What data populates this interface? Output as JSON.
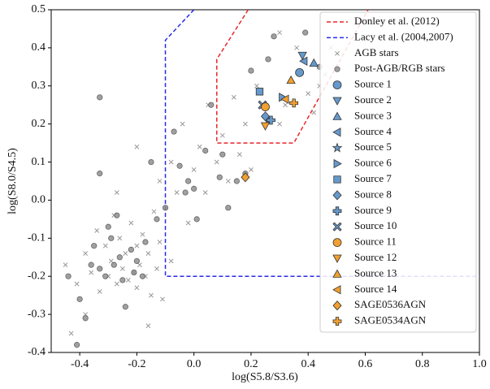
{
  "chart_data": {
    "type": "scatter",
    "x_label": "log(S5.8/S3.6)",
    "y_label": "log(S8.0/S4.5)",
    "xlim": [
      -0.5,
      1.0
    ],
    "ylim": [
      -0.4,
      0.5
    ],
    "xticks": [
      -0.4,
      -0.2,
      {
        "value": 0,
        "label": "0.0"
      },
      0.2,
      0.4,
      0.6,
      0.8,
      {
        "value": 1,
        "label": "1.0"
      }
    ],
    "yticks": [
      -0.4,
      -0.3,
      -0.2,
      -0.1,
      {
        "value": 0,
        "label": "0.0"
      },
      0.1,
      0.2,
      0.3,
      0.4,
      0.5
    ],
    "legend": "upper right",
    "lines": [
      {
        "name": "Donley et al. (2012)",
        "color": "#e8262a",
        "style": "dashed",
        "x": [
          0.19,
          0.08,
          0.08,
          0.35,
          0.61
        ],
        "y": [
          0.5,
          0.37,
          0.15,
          0.15,
          0.5
        ]
      },
      {
        "name": "Lacy et al. (2004,2007)",
        "color": "#2a2ae8",
        "style": "dashed",
        "x": [
          0,
          -0.1,
          -0.1,
          1.0
        ],
        "y": [
          0.5,
          0.42,
          -0.2,
          -0.2
        ]
      }
    ],
    "series": [
      {
        "name": "AGB stars",
        "color": "#999999",
        "marker": "x",
        "x": [
          -0.45,
          -0.43,
          -0.41,
          -0.38,
          -0.36,
          -0.34,
          -0.33,
          -0.31,
          -0.3,
          -0.29,
          -0.28,
          -0.27,
          -0.26,
          -0.25,
          -0.24,
          -0.23,
          -0.22,
          -0.21,
          -0.2,
          -0.2,
          -0.19,
          -0.18,
          -0.17,
          -0.16,
          -0.15,
          -0.14,
          -0.13,
          -0.12,
          -0.11,
          -0.2,
          -0.16,
          -0.27,
          -0.12,
          -0.08,
          -0.06,
          -0.04,
          -0.02,
          0,
          0.02,
          0.04,
          0.05,
          0.08,
          0.1,
          0.12,
          0.14,
          0.16,
          0.18,
          0.2,
          0.22,
          0.3,
          0.32,
          0.4,
          0.42,
          0.44,
          0.46,
          0.48,
          0.36,
          0.3,
          -0.08,
          -0.38
        ],
        "y": [
          -0.17,
          -0.35,
          -0.22,
          -0.14,
          -0.19,
          -0.08,
          -0.24,
          -0.12,
          -0.2,
          -0.16,
          -0.04,
          -0.22,
          -0.1,
          -0.18,
          -0.14,
          -0.21,
          -0.06,
          -0.19,
          -0.12,
          -0.23,
          -0.17,
          -0.09,
          -0.2,
          -0.14,
          -0.25,
          -0.03,
          -0.18,
          -0.11,
          -0.26,
          0.14,
          -0.33,
          0.02,
          0.05,
          0.1,
          0.02,
          0.2,
          -0.06,
          0.08,
          0.14,
          0.02,
          0.25,
          0.1,
          0.17,
          0.05,
          0.27,
          0.12,
          0.2,
          0.08,
          0.3,
          0.2,
          0.25,
          0.28,
          0.23,
          0.3,
          0.33,
          0.4,
          0.4,
          0.44,
          -0.16,
          -0.3
        ]
      },
      {
        "name": "Post-AGB/RGB stars",
        "color": "#888888",
        "marker": "o",
        "x": [
          -0.44,
          -0.4,
          -0.38,
          -0.36,
          -0.35,
          -0.33,
          -0.31,
          -0.3,
          -0.28,
          -0.26,
          -0.25,
          -0.24,
          -0.22,
          -0.21,
          -0.2,
          -0.18,
          -0.17,
          -0.33,
          -0.27,
          -0.15,
          -0.13,
          -0.1,
          -0.07,
          -0.05,
          -0.03,
          -0.02,
          0,
          0.01,
          0.04,
          0.06,
          0.09,
          0.1,
          0.12,
          0.15,
          0.18,
          0.2,
          0.26,
          0.28,
          0.39,
          -0.33,
          -0.41,
          0.44,
          -0.29
        ],
        "y": [
          -0.2,
          -0.26,
          -0.31,
          -0.17,
          -0.12,
          -0.18,
          -0.2,
          -0.07,
          -0.17,
          -0.15,
          -0.21,
          -0.28,
          -0.13,
          -0.19,
          -0.16,
          -0.2,
          -0.11,
          0.07,
          -0.04,
          0.1,
          -0.05,
          -0.02,
          0.18,
          0.09,
          0.02,
          0.05,
          0.03,
          -0.05,
          0.13,
          0.25,
          0.06,
          0.12,
          -0.02,
          0.05,
          0.07,
          0.34,
          0.37,
          0.43,
          0.44,
          0.27,
          -0.38,
          0.35,
          -0.1
        ]
      },
      {
        "name": "Source 1",
        "color": "#6699cc",
        "marker": "o",
        "x": [
          0.37
        ],
        "y": [
          0.335
        ]
      },
      {
        "name": "Source 2",
        "color": "#6699cc",
        "marker": "v",
        "x": [
          0.38
        ],
        "y": [
          0.38
        ]
      },
      {
        "name": "Source 3",
        "color": "#6699cc",
        "marker": "^",
        "x": [
          0.42
        ],
        "y": [
          0.36
        ]
      },
      {
        "name": "Source 4",
        "color": "#6699cc",
        "marker": "<",
        "x": [
          0.385
        ],
        "y": [
          0.365
        ]
      },
      {
        "name": "Source 5",
        "color": "#6699cc",
        "marker": "*",
        "x": [
          0.26
        ],
        "y": [
          0.21
        ]
      },
      {
        "name": "Source 6",
        "color": "#6699cc",
        "marker": ">",
        "x": [
          0.31
        ],
        "y": [
          0.27
        ]
      },
      {
        "name": "Source 7",
        "color": "#6699cc",
        "marker": "s",
        "x": [
          0.23
        ],
        "y": [
          0.285
        ]
      },
      {
        "name": "Source 8",
        "color": "#6699cc",
        "marker": "D",
        "x": [
          0.25
        ],
        "y": [
          0.22
        ]
      },
      {
        "name": "Source 9",
        "color": "#6699cc",
        "marker": "P",
        "x": [
          0.27
        ],
        "y": [
          0.21
        ]
      },
      {
        "name": "Source 10",
        "color": "#6699cc",
        "marker": "X",
        "x": [
          0.24
        ],
        "y": [
          0.25
        ]
      },
      {
        "name": "Source 11",
        "color": "#f0a030",
        "marker": "o",
        "x": [
          0.25
        ],
        "y": [
          0.245
        ]
      },
      {
        "name": "Source 12",
        "color": "#f0a030",
        "marker": "v",
        "x": [
          0.25
        ],
        "y": [
          0.195
        ]
      },
      {
        "name": "Source 13",
        "color": "#f0a030",
        "marker": "^",
        "x": [
          0.34
        ],
        "y": [
          0.315
        ]
      },
      {
        "name": "Source 14",
        "color": "#f0a030",
        "marker": "<",
        "x": [
          0.32
        ],
        "y": [
          0.265
        ]
      },
      {
        "name": "SAGE0536AGN",
        "color": "#f0a030",
        "marker": "D",
        "x": [
          0.18
        ],
        "y": [
          0.06
        ]
      },
      {
        "name": "SAGE0534AGN",
        "color": "#f0a030",
        "marker": "P",
        "x": [
          0.35
        ],
        "y": [
          0.255
        ]
      }
    ]
  }
}
